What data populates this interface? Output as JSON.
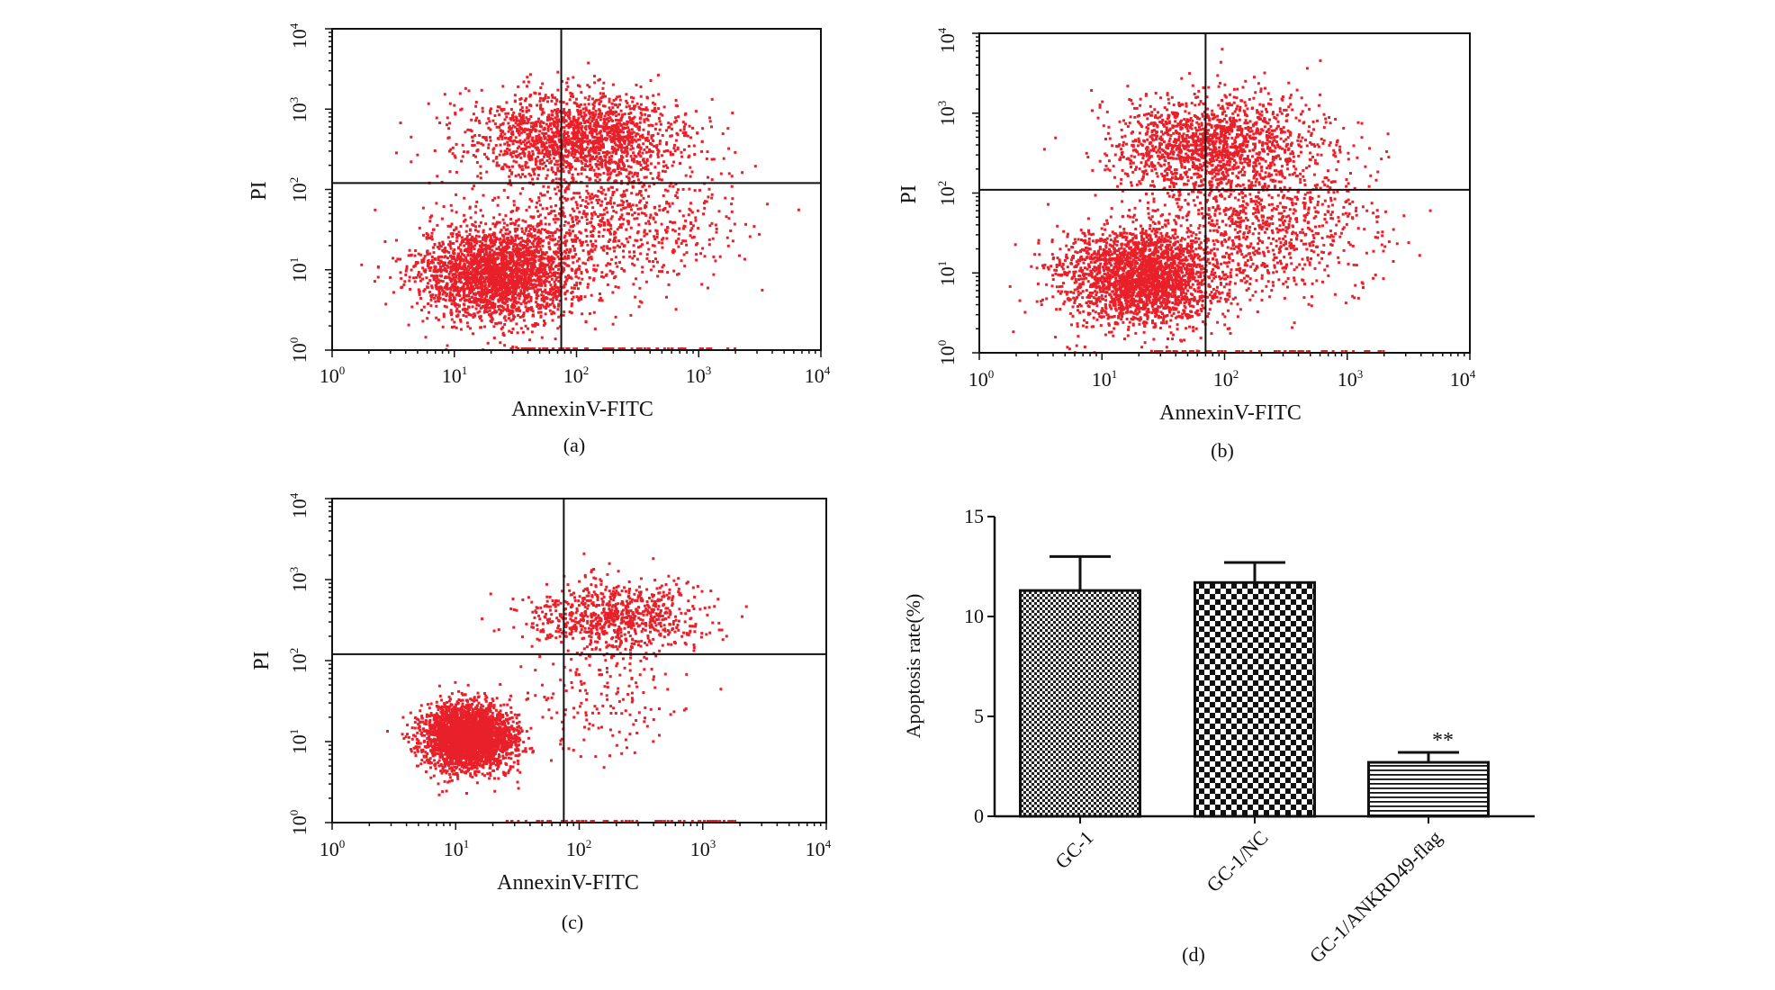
{
  "chart_data": [
    {
      "id": "a",
      "type": "scatter",
      "panel_label": "(a)",
      "xlabel": "AnnexinV-FITC",
      "ylabel": "PI",
      "xscale": "log",
      "yscale": "log",
      "xlim": [
        1,
        10000
      ],
      "ylim": [
        1,
        10000
      ],
      "x_tick_labels": [
        {
          "base": "10",
          "exp": "0"
        },
        {
          "base": "10",
          "exp": "1"
        },
        {
          "base": "10",
          "exp": "2"
        },
        {
          "base": "10",
          "exp": "3"
        },
        {
          "base": "10",
          "exp": "4"
        }
      ],
      "y_tick_labels": [
        {
          "base": "10",
          "exp": "0"
        },
        {
          "base": "10",
          "exp": "1"
        },
        {
          "base": "10",
          "exp": "2"
        },
        {
          "base": "10",
          "exp": "3"
        },
        {
          "base": "10",
          "exp": "4"
        }
      ],
      "quadrant_gate": {
        "x": 75,
        "y": 120
      },
      "color": "#e8202a",
      "populations": [
        {
          "name": "live",
          "center_log": [
            1.35,
            0.95
          ],
          "spread_log": [
            0.32,
            0.3
          ],
          "count": 2600
        },
        {
          "name": "upper",
          "center_log": [
            2.0,
            2.65
          ],
          "spread_log": [
            0.42,
            0.28
          ],
          "count": 1700
        },
        {
          "name": "early-apoptotic",
          "center_log": [
            2.3,
            1.6
          ],
          "spread_log": [
            0.45,
            0.45
          ],
          "count": 800
        }
      ]
    },
    {
      "id": "b",
      "type": "scatter",
      "panel_label": "(b)",
      "xlabel": "AnnexinV-FITC",
      "ylabel": "PI",
      "xscale": "log",
      "yscale": "log",
      "xlim": [
        1,
        10000
      ],
      "ylim": [
        1,
        10000
      ],
      "x_tick_labels": [
        {
          "base": "10",
          "exp": "0"
        },
        {
          "base": "10",
          "exp": "1"
        },
        {
          "base": "10",
          "exp": "2"
        },
        {
          "base": "10",
          "exp": "3"
        },
        {
          "base": "10",
          "exp": "4"
        }
      ],
      "y_tick_labels": [
        {
          "base": "10",
          "exp": "0"
        },
        {
          "base": "10",
          "exp": "1"
        },
        {
          "base": "10",
          "exp": "2"
        },
        {
          "base": "10",
          "exp": "3"
        },
        {
          "base": "10",
          "exp": "4"
        }
      ],
      "quadrant_gate": {
        "x": 70,
        "y": 110
      },
      "color": "#e8202a",
      "populations": [
        {
          "name": "live",
          "center_log": [
            1.3,
            0.95
          ],
          "spread_log": [
            0.32,
            0.3
          ],
          "count": 2500
        },
        {
          "name": "upper",
          "center_log": [
            1.9,
            2.6
          ],
          "spread_log": [
            0.42,
            0.3
          ],
          "count": 1500
        },
        {
          "name": "early-apoptotic",
          "center_log": [
            2.3,
            1.6
          ],
          "spread_log": [
            0.45,
            0.45
          ],
          "count": 900
        }
      ]
    },
    {
      "id": "c",
      "type": "scatter",
      "panel_label": "(c)",
      "xlabel": "AnnexinV-FITC",
      "ylabel": "PI",
      "xscale": "log",
      "yscale": "log",
      "xlim": [
        1,
        10000
      ],
      "ylim": [
        1,
        10000
      ],
      "x_tick_labels": [
        {
          "base": "10",
          "exp": "0"
        },
        {
          "base": "10",
          "exp": "1"
        },
        {
          "base": "10",
          "exp": "2"
        },
        {
          "base": "10",
          "exp": "3"
        },
        {
          "base": "10",
          "exp": "4"
        }
      ],
      "y_tick_labels": [
        {
          "base": "10",
          "exp": "0"
        },
        {
          "base": "10",
          "exp": "1"
        },
        {
          "base": "10",
          "exp": "2"
        },
        {
          "base": "10",
          "exp": "3"
        },
        {
          "base": "10",
          "exp": "4"
        }
      ],
      "quadrant_gate": {
        "x": 75,
        "y": 120
      },
      "color": "#e8202a",
      "populations": [
        {
          "name": "live",
          "center_log": [
            1.1,
            1.05
          ],
          "spread_log": [
            0.18,
            0.2
          ],
          "count": 3000
        },
        {
          "name": "upper",
          "center_log": [
            2.3,
            2.55
          ],
          "spread_log": [
            0.35,
            0.22
          ],
          "count": 800
        },
        {
          "name": "early-apoptotic",
          "center_log": [
            2.2,
            1.6
          ],
          "spread_log": [
            0.35,
            0.4
          ],
          "count": 180
        }
      ]
    },
    {
      "id": "d",
      "type": "bar",
      "panel_label": "(d)",
      "ylabel": "Apoptosis rate(%)",
      "xlabel": "",
      "ylim": [
        0,
        15
      ],
      "y_ticks": [
        0,
        5,
        10,
        15
      ],
      "y_tick_labels": [
        "0",
        "5",
        "10",
        "15"
      ],
      "categories": [
        "GC-1",
        "GC-1/NC",
        "GC-1/ANKRD49-flag"
      ],
      "values": [
        11.3,
        11.7,
        2.7
      ],
      "errors": [
        1.7,
        1.0,
        0.5
      ],
      "patterns": [
        "fine-check",
        "coarse-check",
        "horizontal-stripes"
      ],
      "annotations": [
        {
          "category": "GC-1/ANKRD49-flag",
          "text": "**"
        }
      ]
    }
  ]
}
